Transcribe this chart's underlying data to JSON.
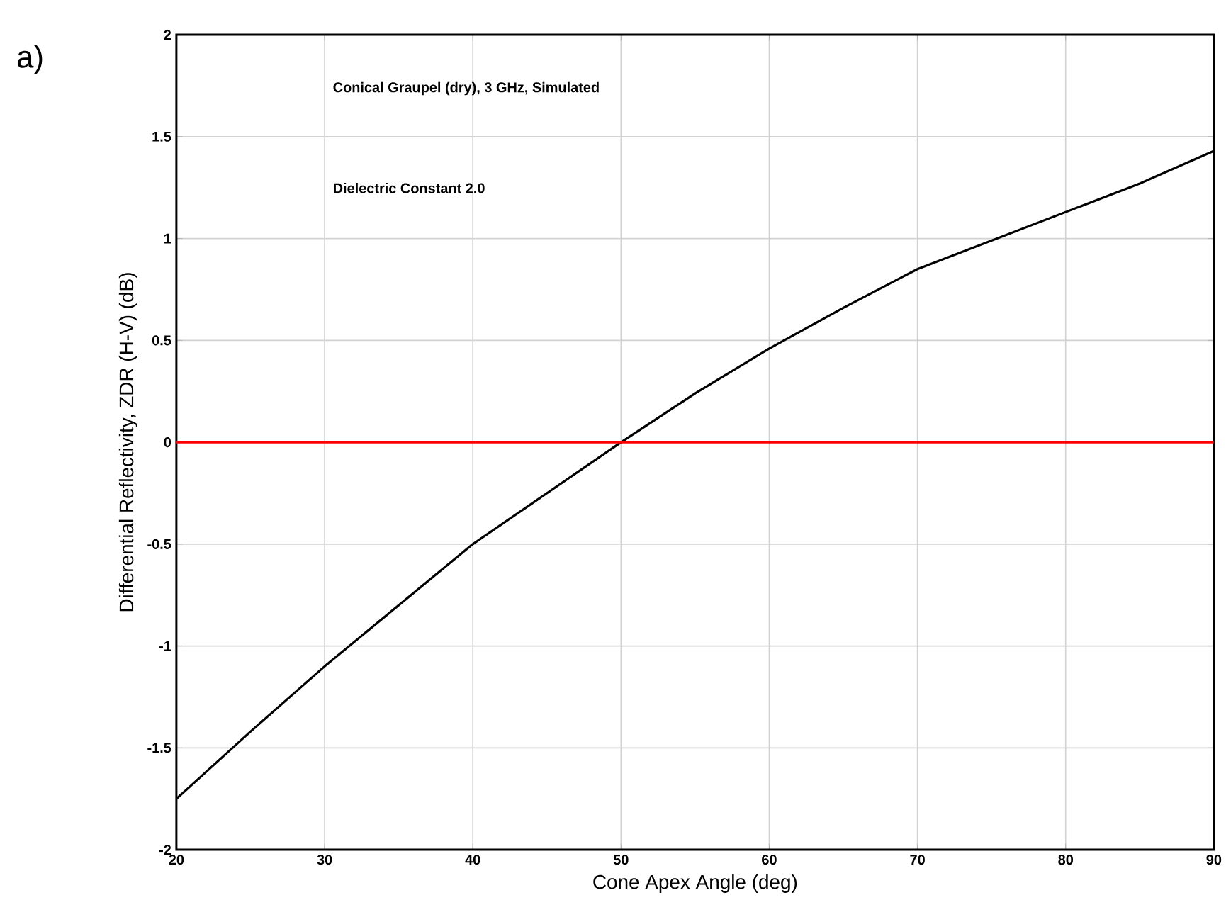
{
  "chart_data": {
    "type": "line",
    "xlabel": "Cone Apex Angle (deg)",
    "ylabel": "Differential Reflectivity, ZDR (H-V) (dB)",
    "annotations": [
      "a)",
      "Conical Graupel (dry), 3 GHz, Simulated",
      "Dielectric Constant 2.0"
    ],
    "x": [
      20,
      25,
      30,
      35,
      40,
      45,
      50,
      55,
      60,
      65,
      70,
      75,
      80,
      85,
      90
    ],
    "series": [
      {
        "color": "#000000",
        "values": [
          -1.75,
          -1.42,
          -1.1,
          -0.8,
          -0.5,
          -0.25,
          0.0,
          0.24,
          0.46,
          0.66,
          0.85,
          0.99,
          1.13,
          1.27,
          1.43
        ]
      }
    ],
    "xlim": [
      20,
      90
    ],
    "ylim": [
      -2,
      2
    ],
    "xticks": [
      20,
      30,
      40,
      50,
      60,
      70,
      80,
      90
    ],
    "yticks": [
      -2,
      -1.5,
      -1,
      -0.5,
      0,
      0.5,
      1,
      1.5,
      2
    ],
    "ref_lines": [
      {
        "axis": "y",
        "value": 0,
        "color": "#ff0000"
      }
    ],
    "grid": true,
    "marker": "none",
    "line_style": "solid"
  }
}
